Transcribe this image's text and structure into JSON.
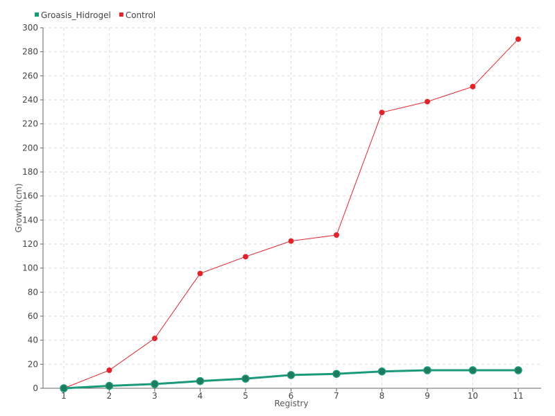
{
  "chart_data": {
    "type": "line",
    "title": "",
    "xlabel": "Registry",
    "ylabel": "Growth(cm)",
    "categories": [
      "1",
      "2",
      "3",
      "4",
      "5",
      "6",
      "7",
      "8",
      "9",
      "10",
      "11"
    ],
    "ylim": [
      0,
      300
    ],
    "yticks": [
      "0",
      "20",
      "40",
      "60",
      "80",
      "100",
      "120",
      "140",
      "160",
      "180",
      "200",
      "220",
      "240",
      "260",
      "280",
      "300"
    ],
    "grid": true,
    "legend_position": "top-left",
    "series": [
      {
        "name": "Groasis_Hidrogel",
        "color": "#1a9a7a",
        "values": [
          0,
          2,
          3.5,
          6,
          8,
          11,
          12,
          14,
          15,
          15,
          15
        ]
      },
      {
        "name": "Control",
        "color": "#e0242b",
        "values": [
          0,
          15,
          41.5,
          95.5,
          109.5,
          122.5,
          127.5,
          229.5,
          238.5,
          251,
          290.5
        ]
      }
    ]
  }
}
